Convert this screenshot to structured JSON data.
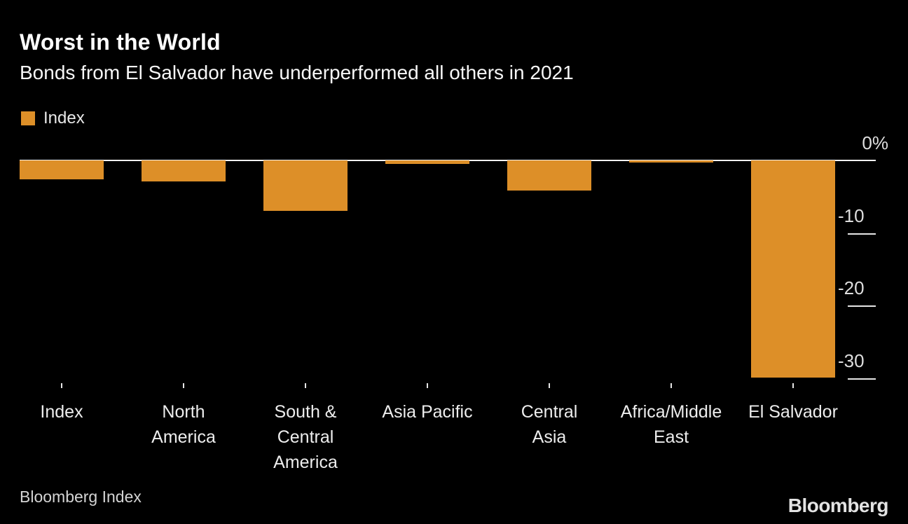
{
  "header": {
    "title": "Worst in the World",
    "subtitle": "Bonds from El Salvador have underperformed all others in 2021"
  },
  "legend": {
    "label": "Index",
    "swatch_color": "#dd8f28"
  },
  "chart_data": {
    "type": "bar",
    "title": "Worst in the World",
    "subtitle": "Bonds from El Salvador have underperformed all others in 2021",
    "series_name": "Index",
    "unit": "%",
    "categories": [
      "Index",
      "North America",
      "South & Central America",
      "Asia Pacific",
      "Central Asia",
      "Africa/Middle East",
      "El Salvador"
    ],
    "categories_wrapped": [
      [
        "Index"
      ],
      [
        "North",
        "America"
      ],
      [
        "South &",
        "Central",
        "America"
      ],
      [
        "Asia Pacific"
      ],
      [
        "Central",
        "Asia"
      ],
      [
        "Africa/Middle",
        "East"
      ],
      [
        "El Salvador"
      ]
    ],
    "values": [
      -2.5,
      -2.8,
      -6.9,
      -0.4,
      -4.1,
      -0.2,
      -29.9
    ],
    "y_ticks": [
      {
        "label": "0%",
        "value": 0
      },
      {
        "label": "-10",
        "value": -10
      },
      {
        "label": "-20",
        "value": -20
      },
      {
        "label": "-30",
        "value": -30
      }
    ],
    "ylim": [
      -32,
      0
    ],
    "grid": false,
    "legend_position": "top-left",
    "bar_color": "#dd8f28",
    "axis_side": "right"
  },
  "footer": {
    "source": "Bloomberg Index",
    "brand": "Bloomberg"
  }
}
